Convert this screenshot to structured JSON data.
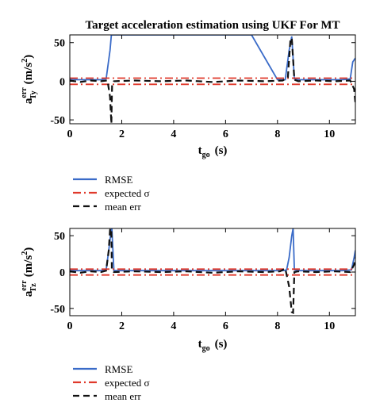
{
  "chart_data": [
    {
      "type": "line",
      "title": "Target acceleration estimation using UKF For MT",
      "xlabel": "t_go (s)",
      "ylabel": "a_Ty^err (m/s^2)",
      "xlabel_parts": {
        "main": "t",
        "sub": "go",
        "unit": "(s)"
      },
      "ylabel_parts": {
        "main": "a",
        "sup": "err",
        "sub": "Ty",
        "unit": "(m/s",
        "unit_sup": "2",
        "unit_close": ")"
      },
      "xlim": [
        0,
        11
      ],
      "ylim": [
        -55,
        60
      ],
      "xticks": [
        "0",
        "2",
        "4",
        "6",
        "8",
        "10"
      ],
      "yticks": [
        "50",
        "0",
        "-50"
      ],
      "grid": false,
      "legend": [
        "RMSE",
        "expected σ",
        "mean err"
      ],
      "series": [
        {
          "name": "RMSE",
          "color": "#3a6bc8",
          "style": "solid",
          "x": [
            0,
            0.3,
            0.6,
            0.9,
            1.2,
            1.4,
            1.55,
            1.6,
            1.62,
            1.7,
            2.0,
            3.0,
            4.0,
            5.0,
            6.0,
            7.0,
            8.0,
            8.3,
            8.45,
            8.55,
            8.65,
            8.8,
            9.5,
            10.0,
            10.5,
            10.8,
            10.9,
            11.0
          ],
          "y": [
            3,
            2,
            2,
            2,
            2,
            3,
            40,
            60,
            60,
            60,
            60,
            60,
            60,
            60,
            60,
            60,
            2,
            2,
            40,
            58,
            3,
            2,
            2,
            2,
            2,
            3,
            25,
            30
          ]
        },
        {
          "name": "expected σ",
          "color": "#e0392b",
          "style": "dashdot",
          "band": true,
          "x": [
            0,
            11
          ],
          "upper": [
            4,
            4
          ],
          "lower": [
            -4,
            -4
          ]
        },
        {
          "name": "mean err",
          "color": "#111111",
          "style": "dashed",
          "x": [
            0,
            0.4,
            0.8,
            1.2,
            1.45,
            1.55,
            1.6,
            1.63,
            1.7,
            2.5,
            3.5,
            4.5,
            5.5,
            6.5,
            7.5,
            8.2,
            8.4,
            8.5,
            8.55,
            8.65,
            8.8,
            9.5,
            10.2,
            10.8,
            10.95,
            11.0
          ],
          "y": [
            1,
            -1,
            1,
            0,
            1,
            -20,
            -55,
            -5,
            0,
            1,
            0,
            1,
            -1,
            1,
            0,
            1,
            5,
            55,
            56,
            2,
            0,
            1,
            0,
            1,
            -10,
            -28
          ]
        }
      ]
    },
    {
      "type": "line",
      "title": "",
      "xlabel": "t_go (s)",
      "ylabel": "a_Tz^err (m/s^2)",
      "xlabel_parts": {
        "main": "t",
        "sub": "go",
        "unit": "(s)"
      },
      "ylabel_parts": {
        "main": "a",
        "sup": "err",
        "sub": "Tz",
        "unit": "(m/s",
        "unit_sup": "2",
        "unit_close": ")"
      },
      "xlim": [
        0,
        11
      ],
      "ylim": [
        -60,
        60
      ],
      "xticks": [
        "0",
        "2",
        "4",
        "6",
        "8",
        "10"
      ],
      "yticks": [
        "50",
        "0",
        "-50"
      ],
      "grid": false,
      "legend": [
        "RMSE",
        "expected σ",
        "mean err"
      ],
      "series": [
        {
          "name": "RMSE",
          "color": "#3a6bc8",
          "style": "solid",
          "x": [
            0,
            0.4,
            0.8,
            1.2,
            1.4,
            1.5,
            1.6,
            1.62,
            1.7,
            3.0,
            5.0,
            7.0,
            8.2,
            8.35,
            8.45,
            8.55,
            8.6,
            8.65,
            8.8,
            9.5,
            10.5,
            10.85,
            10.95,
            11.0
          ],
          "y": [
            2,
            2,
            2,
            2,
            3,
            30,
            60,
            60,
            2,
            2,
            2,
            2,
            2,
            3,
            20,
            50,
            60,
            3,
            2,
            2,
            2,
            3,
            20,
            30
          ]
        },
        {
          "name": "expected σ",
          "color": "#e0392b",
          "style": "dashdot",
          "band": true,
          "x": [
            0,
            11
          ],
          "upper": [
            4,
            4
          ],
          "lower": [
            -4,
            -4
          ]
        },
        {
          "name": "mean err",
          "color": "#111111",
          "style": "dashed",
          "x": [
            0,
            0.4,
            0.8,
            1.2,
            1.4,
            1.5,
            1.55,
            1.6,
            1.62,
            1.7,
            2.5,
            3.5,
            4.5,
            5.5,
            6.5,
            7.5,
            8.1,
            8.3,
            8.45,
            8.55,
            8.6,
            8.65,
            8.8,
            9.5,
            10.2,
            10.8,
            10.95,
            11.0
          ],
          "y": [
            1,
            -1,
            1,
            0,
            2,
            30,
            58,
            60,
            2,
            0,
            1,
            0,
            1,
            -1,
            1,
            0,
            1,
            5,
            -20,
            -55,
            -56,
            0,
            1,
            0,
            1,
            0,
            10,
            20
          ]
        }
      ]
    }
  ]
}
